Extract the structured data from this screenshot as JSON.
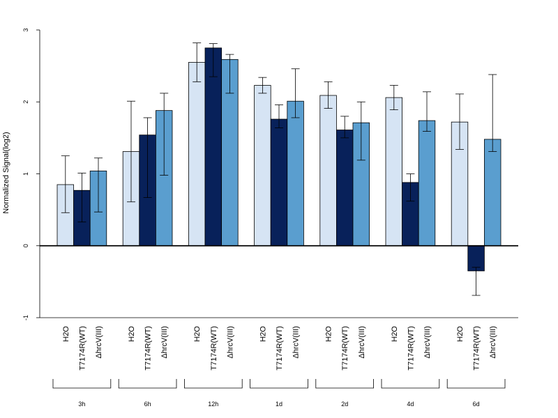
{
  "chart_data": {
    "type": "bar",
    "ylabel": "Normalized Signal(log2)",
    "ylim": [
      -1,
      3
    ],
    "yticks": [
      "-1",
      "0",
      "1",
      "2",
      "3"
    ],
    "groups": [
      "3h",
      "6h",
      "12h",
      "1d",
      "2d",
      "4d",
      "6d"
    ],
    "series": [
      {
        "name": "H2O",
        "color": "#d6e4f4",
        "values": [
          0.85,
          1.31,
          2.55,
          2.23,
          2.09,
          2.06,
          1.72
        ],
        "err_low": [
          0.46,
          0.61,
          2.28,
          2.12,
          1.91,
          1.89,
          1.34
        ],
        "err_high": [
          1.25,
          2.01,
          2.82,
          2.34,
          2.28,
          2.23,
          2.11
        ]
      },
      {
        "name": "T7174R(WT)",
        "color": "#08215a",
        "values": [
          0.77,
          1.54,
          2.75,
          1.76,
          1.61,
          0.88,
          -0.35
        ],
        "err_low": [
          0.33,
          0.67,
          2.35,
          1.64,
          1.5,
          0.62,
          -0.69
        ],
        "err_high": [
          1.01,
          1.78,
          2.81,
          1.96,
          1.8,
          1.0,
          -0.3
        ]
      },
      {
        "name": "ΔhrcV(III)",
        "color": "#5a9ecf",
        "values": [
          1.04,
          1.88,
          2.59,
          2.01,
          1.71,
          1.74,
          1.48
        ],
        "err_low": [
          0.47,
          0.98,
          2.12,
          1.78,
          1.19,
          1.59,
          1.31
        ],
        "err_high": [
          1.22,
          2.12,
          2.66,
          2.46,
          2.0,
          2.14,
          2.38
        ]
      }
    ],
    "grid": false,
    "legend": "none"
  }
}
